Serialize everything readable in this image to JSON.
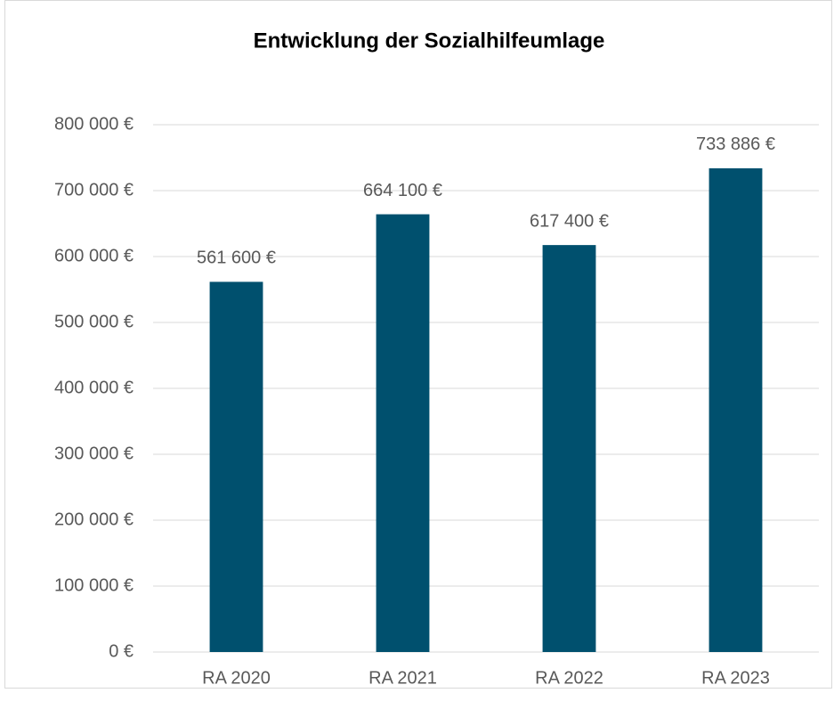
{
  "chart_data": {
    "type": "bar",
    "title": "Entwicklung der Sozialhilfeumlage",
    "categories": [
      "RA 2020",
      "RA 2021",
      "RA 2022",
      "RA 2023"
    ],
    "values": [
      561600,
      664100,
      617400,
      733886
    ],
    "value_labels": [
      "561 600 €",
      "664 100 €",
      "617 400 €",
      "733 886 €"
    ],
    "color": "#00506e",
    "ylim": [
      0,
      800000
    ],
    "yticks": [
      {
        "value": 0,
        "label": "0 €"
      },
      {
        "value": 100000,
        "label": "100 000 €"
      },
      {
        "value": 200000,
        "label": "200 000 €"
      },
      {
        "value": 300000,
        "label": "300 000 €"
      },
      {
        "value": 400000,
        "label": "400 000 €"
      },
      {
        "value": 500000,
        "label": "500 000 €"
      },
      {
        "value": 600000,
        "label": "600 000 €"
      },
      {
        "value": 700000,
        "label": "700 000 €"
      },
      {
        "value": 800000,
        "label": "800 000 €"
      }
    ],
    "grid": true
  }
}
